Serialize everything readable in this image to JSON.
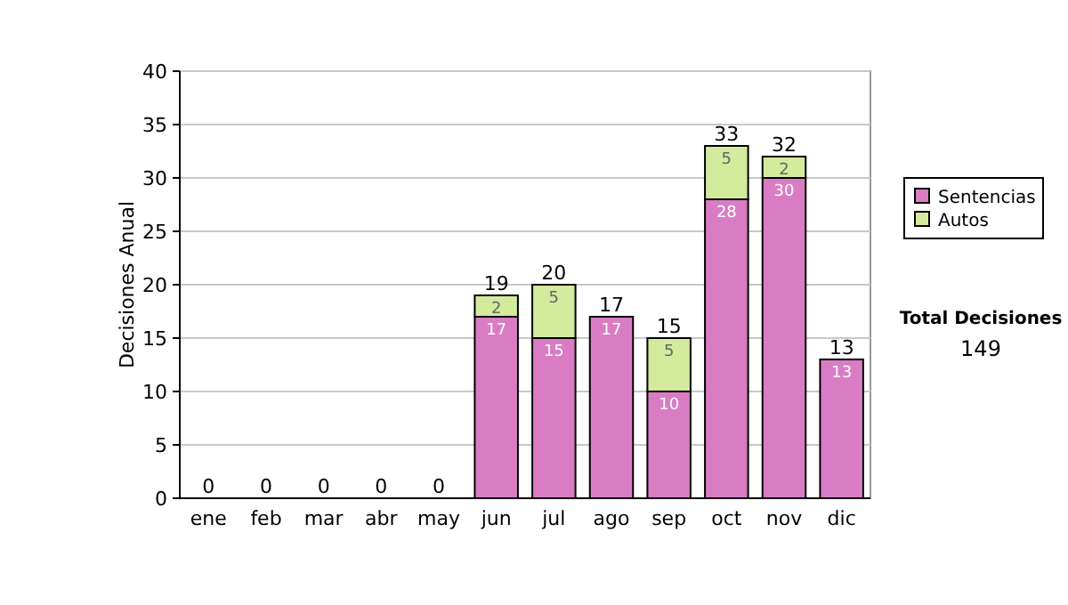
{
  "chart_data": {
    "type": "bar",
    "stacked": true,
    "ylabel": "Decisiones Anual",
    "categories": [
      "ene",
      "feb",
      "mar",
      "abr",
      "may",
      "jun",
      "jul",
      "ago",
      "sep",
      "oct",
      "nov",
      "dic"
    ],
    "series": [
      {
        "name": "Sentencias",
        "color": "#d97cc4",
        "values": [
          0,
          0,
          0,
          0,
          0,
          17,
          15,
          17,
          10,
          28,
          30,
          13
        ],
        "value_labels": [
          null,
          null,
          null,
          null,
          null,
          "17",
          "15",
          "17",
          "10",
          "28",
          "30",
          "13"
        ]
      },
      {
        "name": "Autos",
        "color": "#d4ea9c",
        "values": [
          0,
          0,
          0,
          0,
          0,
          2,
          5,
          0,
          5,
          5,
          2,
          0
        ],
        "value_labels": [
          null,
          null,
          null,
          null,
          null,
          "2",
          "5",
          null,
          "5",
          "5",
          "2",
          null
        ]
      }
    ],
    "totals": [
      "0",
      "0",
      "0",
      "0",
      "0",
      "19",
      "20",
      "17",
      "15",
      "33",
      "32",
      "13"
    ],
    "ylim": [
      0,
      40
    ],
    "yticks": [
      0,
      5,
      10,
      15,
      20,
      25,
      30,
      35,
      40
    ],
    "grid": "y",
    "legend": "right",
    "annotations": [
      "Total Decisiones",
      "149"
    ]
  }
}
